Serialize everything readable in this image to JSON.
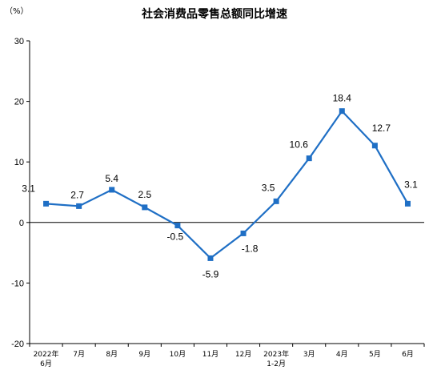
{
  "chart_data": {
    "type": "line",
    "title": "社会消费品零售总额同比增速",
    "ylabel": "（%）",
    "xlabel": "",
    "categories": [
      "2022年\n6月",
      "7月",
      "8月",
      "9月",
      "10月",
      "11月",
      "12月",
      "2023年\n1-2月",
      "3月",
      "4月",
      "5月",
      "6月"
    ],
    "series": [
      {
        "values": [
          3.1,
          2.7,
          5.4,
          2.5,
          -0.5,
          -5.9,
          -1.8,
          3.5,
          10.6,
          18.4,
          12.7,
          3.1
        ],
        "labels": [
          "3.1",
          "2.7",
          "5.4",
          "2.5",
          "-0.5",
          "-5.9",
          "-1.8",
          "3.5",
          "10.6",
          "18.4",
          "12.7",
          "3.1"
        ],
        "color": "#1f6fc5"
      }
    ],
    "ylim": [
      -20,
      30
    ],
    "yticks": [
      "30",
      "20",
      "10",
      "0",
      "-10",
      "-20"
    ],
    "grid": false,
    "legend": "none"
  }
}
